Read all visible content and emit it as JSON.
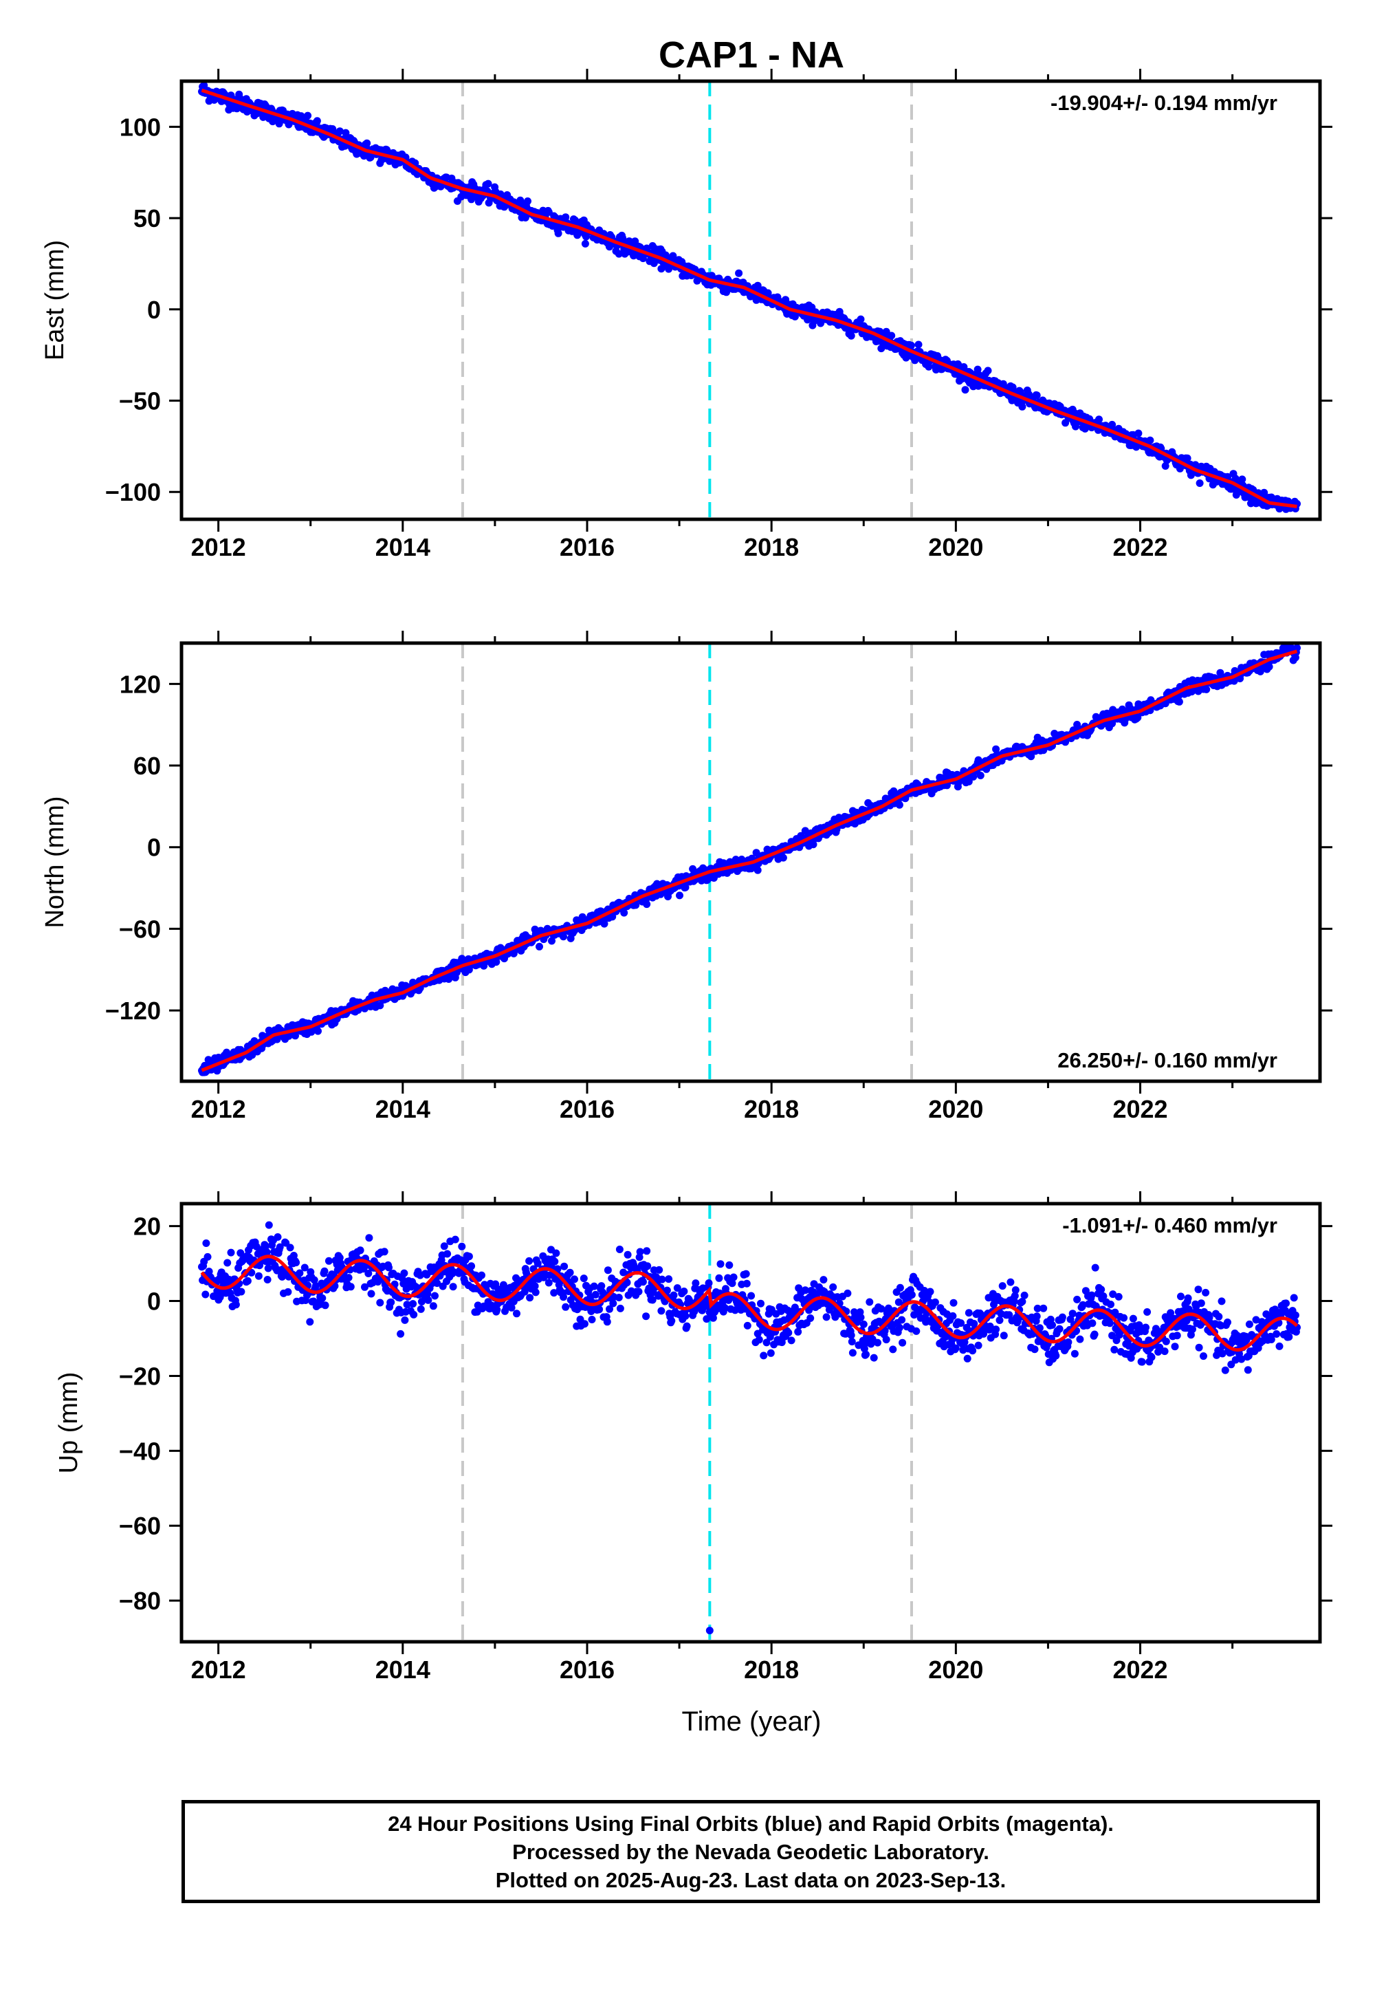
{
  "chart_data": {
    "title": "CAP1 - NA",
    "type": "scatter",
    "xlabel": "Time (year)",
    "xlim": [
      2011.6,
      2023.95
    ],
    "xticks": [
      2012,
      2014,
      2016,
      2018,
      2020,
      2022
    ],
    "event_lines": [
      {
        "x": 2014.65,
        "color": "#c8c8c8"
      },
      {
        "x": 2017.33,
        "color": "#00e5ee"
      },
      {
        "x": 2019.52,
        "color": "#c8c8c8"
      }
    ],
    "series_colors": {
      "positions": "#0000ff",
      "model": "#ff0000"
    },
    "data_span": [
      2011.82,
      2023.7
    ],
    "panels": [
      {
        "ylabel": "East (mm)",
        "ylim": [
          -115,
          125
        ],
        "yticks": [
          -100,
          -50,
          0,
          50,
          100
        ],
        "rate": "-19.904+/- 0.194 mm/yr",
        "rate_position": "top-right",
        "model": [
          [
            2011.82,
            120
          ],
          [
            2012.3,
            112
          ],
          [
            2012.8,
            104
          ],
          [
            2013.2,
            96
          ],
          [
            2013.6,
            87
          ],
          [
            2014.0,
            82
          ],
          [
            2014.3,
            72
          ],
          [
            2014.65,
            66
          ],
          [
            2015.0,
            62
          ],
          [
            2015.4,
            52
          ],
          [
            2015.9,
            45
          ],
          [
            2016.3,
            37
          ],
          [
            2016.8,
            28
          ],
          [
            2017.33,
            16
          ],
          [
            2017.7,
            12
          ],
          [
            2018.2,
            0
          ],
          [
            2018.7,
            -6
          ],
          [
            2019.1,
            -13
          ],
          [
            2019.52,
            -23
          ],
          [
            2020.0,
            -33
          ],
          [
            2020.6,
            -46
          ],
          [
            2021.1,
            -56
          ],
          [
            2021.6,
            -65
          ],
          [
            2022.1,
            -75
          ],
          [
            2022.6,
            -88
          ],
          [
            2023.0,
            -95
          ],
          [
            2023.4,
            -106
          ],
          [
            2023.7,
            -108
          ]
        ],
        "scatter_sd": 2.2,
        "outliers": []
      },
      {
        "ylabel": "North (mm)",
        "ylim": [
          -172,
          150
        ],
        "yticks": [
          -120,
          -60,
          0,
          60,
          120
        ],
        "rate": "26.250+/- 0.160 mm/yr",
        "rate_position": "bottom-right",
        "model": [
          [
            2011.82,
            -164
          ],
          [
            2012.3,
            -151
          ],
          [
            2012.6,
            -138
          ],
          [
            2013.0,
            -132
          ],
          [
            2013.4,
            -120
          ],
          [
            2013.7,
            -112
          ],
          [
            2014.0,
            -107
          ],
          [
            2014.3,
            -97
          ],
          [
            2014.65,
            -87
          ],
          [
            2015.0,
            -80
          ],
          [
            2015.5,
            -65
          ],
          [
            2016.0,
            -56
          ],
          [
            2016.6,
            -36
          ],
          [
            2017.33,
            -18
          ],
          [
            2017.8,
            -11
          ],
          [
            2018.3,
            3
          ],
          [
            2018.7,
            16
          ],
          [
            2019.2,
            30
          ],
          [
            2019.52,
            42
          ],
          [
            2020.0,
            50
          ],
          [
            2020.5,
            67
          ],
          [
            2021.0,
            75
          ],
          [
            2021.6,
            93
          ],
          [
            2022.0,
            100
          ],
          [
            2022.5,
            117
          ],
          [
            2023.0,
            125
          ],
          [
            2023.4,
            138
          ],
          [
            2023.7,
            144
          ]
        ],
        "scatter_sd": 2.5,
        "outliers": []
      },
      {
        "ylabel": "Up (mm)",
        "ylim": [
          -91,
          26
        ],
        "yticks": [
          -80,
          -60,
          -40,
          -20,
          0,
          20
        ],
        "rate": "-1.091+/- 0.460 mm/yr",
        "rate_position": "top-right",
        "seasonal": {
          "amp": 4.5,
          "phase_year": 2012.55,
          "trend_mm_per_yr": -1.091,
          "offset_at_2012": 8.0
        },
        "step": {
          "x": 2017.33,
          "dy": -4.5
        },
        "scatter_sd": 3.2,
        "outliers": [
          [
            2017.33,
            -88
          ]
        ]
      }
    ]
  },
  "caption": {
    "line1": "24 Hour Positions Using Final Orbits (blue) and Rapid Orbits (magenta).",
    "line2": "Processed by the Nevada Geodetic Laboratory.",
    "line3": "Plotted on 2025-Aug-23. Last data on 2023-Sep-13."
  }
}
